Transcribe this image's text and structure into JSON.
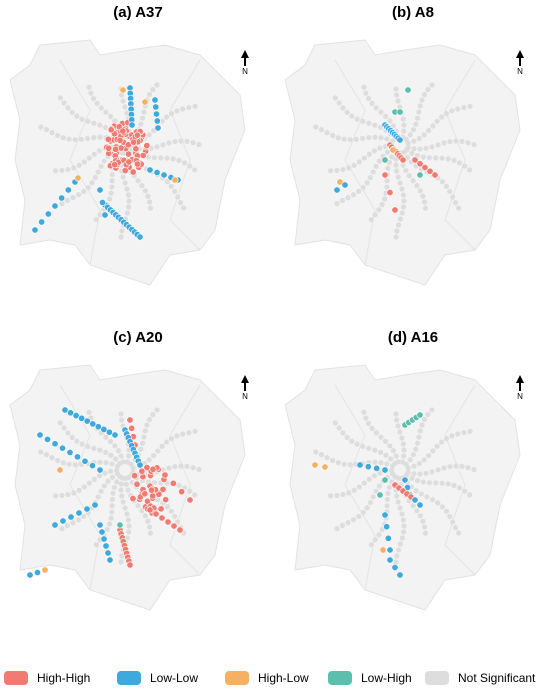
{
  "panels": [
    {
      "title": "(a) A37",
      "north": "N"
    },
    {
      "title": "(b) A8",
      "north": "N"
    },
    {
      "title": "(c) A20",
      "north": "N"
    },
    {
      "title": "(d) A16",
      "north": "N"
    }
  ],
  "legend": [
    {
      "label": "High-High",
      "color": "#f07b72"
    },
    {
      "label": "Low-Low",
      "color": "#3fa9dc"
    },
    {
      "label": "High-Low",
      "color": "#f5b061"
    },
    {
      "label": "Low-High",
      "color": "#5cbfae"
    },
    {
      "label": "Not Significant",
      "color": "#dddddd"
    }
  ]
}
